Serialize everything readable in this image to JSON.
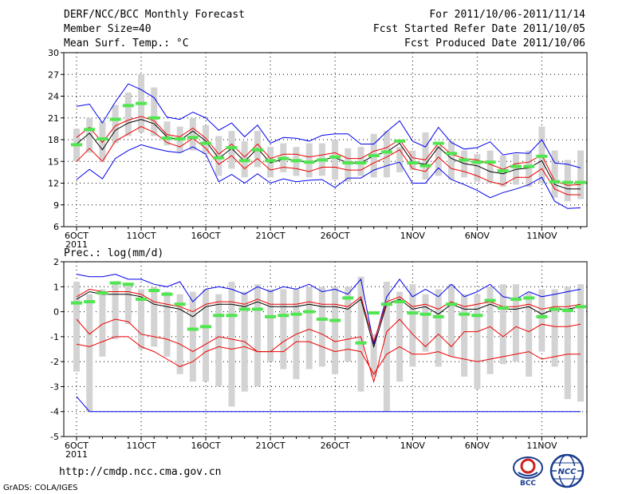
{
  "header": {
    "title": "DERF/NCC/BCC Monthly Forecast",
    "member_size": "Member Size=40",
    "variable": "Mean Surf. Temp.: °C",
    "period": "For 2011/10/06-2011/11/14",
    "refer_date": "Fcst Started Refer Date 2011/10/05",
    "produced_date": "Fcst Produced Date 2011/10/06"
  },
  "footer": {
    "url": "http://cmdp.ncc.cma.gov.cn",
    "credit": "GrADS: COLA/IGES",
    "logo_bcc": "BCC",
    "logo_ncc": "NCC"
  },
  "colors": {
    "grid": "#000000",
    "box": "#d3d3d3",
    "mean": "#50e650",
    "envelope": "#0000ee",
    "interval": "#ee0000",
    "median": "#000000"
  },
  "chart_data": [
    {
      "type": "line",
      "name": "temperature",
      "title": "",
      "ylabel": "Mean Surf. Temp.: °C",
      "ylim": [
        6,
        30
      ],
      "yticks": [
        6,
        9,
        12,
        15,
        18,
        21,
        24,
        27,
        30
      ],
      "days": 40,
      "xtick_labels": [
        {
          "day": 1,
          "label": "6OCT"
        },
        {
          "day": 6,
          "label": "11OCT"
        },
        {
          "day": 11,
          "label": "16OCT"
        },
        {
          "day": 16,
          "label": "21OCT"
        },
        {
          "day": 21,
          "label": "26OCT"
        },
        {
          "day": 27,
          "label": "1NOV"
        },
        {
          "day": 32,
          "label": "6NOV"
        },
        {
          "day": 37,
          "label": "11NOV"
        }
      ],
      "year_label": "2011",
      "box_low": [
        15.0,
        16.2,
        15.2,
        17.5,
        18.5,
        19.0,
        18.5,
        17.2,
        16.2,
        16.5,
        16.0,
        13.0,
        14.0,
        12.8,
        14.2,
        12.8,
        13.5,
        13.0,
        12.8,
        13.0,
        12.5,
        12.2,
        13.0,
        12.8,
        12.8,
        13.5,
        13.8,
        12.5,
        13.0,
        12.5,
        12.8,
        12.2,
        12.0,
        11.5,
        11.8,
        11.5,
        12.0,
        10.0,
        9.5,
        9.8
      ],
      "box_high": [
        19.5,
        21.0,
        20.5,
        22.8,
        24.5,
        27.0,
        25.2,
        20.5,
        19.8,
        21.0,
        20.0,
        18.5,
        19.2,
        17.8,
        19.2,
        17.0,
        17.5,
        17.0,
        17.5,
        17.5,
        18.0,
        16.8,
        17.0,
        18.8,
        19.2,
        17.0,
        16.5,
        19.0,
        17.2,
        17.8,
        16.5,
        16.0,
        16.5,
        15.8,
        16.0,
        16.5,
        19.8,
        16.5,
        15.2,
        16.5
      ],
      "series": [
        {
          "name": "max",
          "color": "envelope",
          "values": [
            22.6,
            22.9,
            20.3,
            23.2,
            25.7,
            24.9,
            23.8,
            21.1,
            20.8,
            21.8,
            21.0,
            19.3,
            20.3,
            18.4,
            20.0,
            17.5,
            18.3,
            18.2,
            17.8,
            18.6,
            18.8,
            18.8,
            17.4,
            17.4,
            19.1,
            20.6,
            17.8,
            17.0,
            19.7,
            17.6,
            16.7,
            16.9,
            17.7,
            15.9,
            16.2,
            16.1,
            18.0,
            14.8,
            14.6,
            14.1
          ]
        },
        {
          "name": "upper",
          "color": "interval",
          "values": [
            18.3,
            19.7,
            17.6,
            19.9,
            20.7,
            21.2,
            20.6,
            18.7,
            18.4,
            19.6,
            18.2,
            16.0,
            17.4,
            15.6,
            17.4,
            15.4,
            16.0,
            16.0,
            15.6,
            15.9,
            16.2,
            15.4,
            15.4,
            16.4,
            16.9,
            18.0,
            15.5,
            15.2,
            17.5,
            16.0,
            15.4,
            15.2,
            14.6,
            13.9,
            14.7,
            14.9,
            15.9,
            12.3,
            11.7,
            11.8
          ]
        },
        {
          "name": "median",
          "color": "median",
          "values": [
            17.4,
            18.9,
            16.6,
            19.3,
            20.3,
            20.8,
            20.2,
            18.4,
            17.9,
            19.2,
            17.8,
            15.4,
            16.8,
            15.0,
            16.8,
            14.8,
            15.3,
            15.2,
            14.8,
            15.3,
            15.5,
            14.8,
            14.8,
            15.8,
            16.3,
            17.5,
            14.9,
            14.6,
            17.0,
            15.4,
            14.7,
            14.4,
            13.6,
            13.3,
            13.9,
            14.1,
            15.1,
            11.8,
            11.2,
            11.2
          ]
        },
        {
          "name": "lower",
          "color": "interval",
          "values": [
            15.0,
            16.8,
            15.0,
            17.8,
            18.8,
            19.8,
            19.0,
            17.6,
            17.0,
            18.2,
            16.8,
            14.6,
            15.8,
            14.0,
            15.4,
            13.8,
            14.2,
            14.0,
            13.6,
            14.2,
            14.2,
            13.8,
            13.8,
            14.8,
            15.6,
            16.6,
            14.0,
            13.6,
            15.6,
            14.0,
            13.6,
            13.0,
            12.2,
            11.8,
            12.8,
            12.8,
            14.0,
            11.2,
            10.4,
            10.4
          ]
        },
        {
          "name": "min",
          "color": "envelope",
          "values": [
            12.5,
            13.9,
            12.6,
            15.4,
            16.5,
            17.3,
            16.8,
            16.4,
            16.2,
            17.0,
            16.0,
            12.2,
            13.2,
            12.0,
            13.3,
            12.0,
            12.6,
            12.2,
            12.4,
            12.5,
            11.4,
            12.7,
            12.7,
            13.8,
            14.4,
            14.9,
            12.0,
            12.0,
            14.1,
            12.5,
            11.8,
            11.0,
            10.0,
            10.7,
            11.2,
            11.8,
            12.8,
            9.5,
            8.5,
            8.6
          ]
        }
      ],
      "mean_marks": [
        17.3,
        19.4,
        18.1,
        20.8,
        22.7,
        23.0,
        21.0,
        18.2,
        18.1,
        18.3,
        17.5,
        15.5,
        16.9,
        15.1,
        16.6,
        15.1,
        15.4,
        15.1,
        14.9,
        15.2,
        15.6,
        14.8,
        14.8,
        15.8,
        16.3,
        17.8,
        14.8,
        14.4,
        17.5,
        16.1,
        15.2,
        14.9,
        14.9,
        13.7,
        14.3,
        14.3,
        15.7,
        12.2,
        12.1,
        12.1
      ]
    },
    {
      "type": "line",
      "name": "precipitation",
      "title": "",
      "ylabel": "Prec.: log(mm/d)",
      "ylim": [
        -5,
        2
      ],
      "yticks": [
        -5,
        -4,
        -3,
        -2,
        -1,
        0,
        1,
        2
      ],
      "days": 40,
      "xtick_labels": [
        {
          "day": 1,
          "label": "6OCT"
        },
        {
          "day": 6,
          "label": "11OCT"
        },
        {
          "day": 11,
          "label": "16OCT"
        },
        {
          "day": 16,
          "label": "21OCT"
        },
        {
          "day": 21,
          "label": "26OCT"
        },
        {
          "day": 27,
          "label": "1NOV"
        },
        {
          "day": 32,
          "label": "6NOV"
        },
        {
          "day": 37,
          "label": "11NOV"
        }
      ],
      "year_label": "2011",
      "box_low": [
        -2.4,
        -4.0,
        -1.8,
        -1.1,
        -0.5,
        -1.5,
        -1.4,
        -1.8,
        -2.5,
        -2.8,
        -2.8,
        -3.0,
        -3.8,
        -3.2,
        -3.0,
        -2.0,
        -2.3,
        -2.7,
        -2.3,
        -2.2,
        -2.5,
        -2.0,
        -3.2,
        -2.6,
        -4.0,
        -2.8,
        -2.2,
        -1.6,
        -2.2,
        -1.8,
        -2.6,
        -3.1,
        -2.5,
        -2.1,
        -2.0,
        -2.6,
        -1.6,
        -2.2,
        -3.5,
        -3.6
      ],
      "box_high": [
        1.2,
        0.7,
        0.9,
        1.1,
        1.1,
        0.9,
        1.0,
        0.8,
        0.7,
        0.8,
        0.9,
        0.7,
        1.2,
        0.8,
        1.1,
        0.9,
        0.9,
        0.9,
        1.0,
        1.0,
        1.0,
        1.0,
        1.4,
        -0.9,
        1.2,
        0.8,
        1.1,
        0.7,
        0.9,
        1.1,
        0.7,
        0.7,
        1.0,
        1.1,
        1.1,
        0.8,
        0.9,
        0.9,
        1.0,
        1.1
      ],
      "series": [
        {
          "name": "max",
          "color": "envelope",
          "values": [
            1.5,
            1.4,
            1.4,
            1.5,
            1.3,
            1.3,
            1.1,
            1.0,
            1.2,
            0.4,
            0.9,
            1.0,
            0.9,
            0.7,
            1.0,
            0.8,
            1.0,
            0.9,
            1.1,
            0.8,
            0.9,
            0.7,
            1.3,
            -1.3,
            0.6,
            1.3,
            0.6,
            0.9,
            0.6,
            1.1,
            0.6,
            0.8,
            1.1,
            0.6,
            0.5,
            0.8,
            0.6,
            0.7,
            0.8,
            0.9
          ]
        },
        {
          "name": "upper",
          "color": "interval",
          "values": [
            0.6,
            0.9,
            0.8,
            0.8,
            0.8,
            0.7,
            0.4,
            0.3,
            0.2,
            0.0,
            0.3,
            0.4,
            0.4,
            0.3,
            0.5,
            0.3,
            0.3,
            0.3,
            0.4,
            0.3,
            0.3,
            0.2,
            0.6,
            -1.2,
            0.4,
            0.6,
            0.2,
            0.3,
            0.1,
            0.4,
            0.2,
            0.3,
            0.4,
            0.2,
            0.2,
            0.3,
            0.1,
            0.2,
            0.2,
            0.3
          ]
        },
        {
          "name": "median",
          "color": "median",
          "values": [
            0.5,
            0.8,
            0.7,
            0.7,
            0.7,
            0.6,
            0.3,
            0.2,
            0.1,
            -0.2,
            0.2,
            0.3,
            0.3,
            0.2,
            0.4,
            0.2,
            0.2,
            0.2,
            0.3,
            0.2,
            0.2,
            0.1,
            0.5,
            -1.4,
            0.3,
            0.5,
            0.1,
            0.2,
            -0.1,
            0.3,
            0.1,
            0.1,
            0.3,
            0.1,
            0.1,
            0.2,
            -0.1,
            0.1,
            0.1,
            0.2
          ]
        },
        {
          "name": "lower",
          "color": "interval",
          "values": [
            -0.3,
            -0.9,
            -0.5,
            -0.3,
            -0.4,
            -0.9,
            -1.0,
            -1.1,
            -1.3,
            -1.6,
            -1.3,
            -1.0,
            -1.1,
            -1.2,
            -1.6,
            -1.6,
            -1.2,
            -0.9,
            -0.7,
            -0.9,
            -1.2,
            -1.1,
            -1.0,
            -2.8,
            -0.8,
            -0.3,
            -0.9,
            -1.4,
            -0.9,
            -1.4,
            -0.8,
            -0.8,
            -0.6,
            -1.0,
            -0.6,
            -0.8,
            -0.5,
            -0.6,
            -0.6,
            -0.5
          ]
        },
        {
          "name": "lower2",
          "color": "interval",
          "values": [
            -1.3,
            -1.4,
            -1.2,
            -1.0,
            -1.0,
            -1.4,
            -1.6,
            -1.9,
            -2.2,
            -2.0,
            -1.6,
            -1.4,
            -1.5,
            -1.4,
            -1.6,
            -1.6,
            -1.6,
            -1.2,
            -1.2,
            -1.4,
            -1.6,
            -1.5,
            -1.6,
            -2.5,
            -1.7,
            -1.4,
            -1.7,
            -1.7,
            -1.6,
            -1.8,
            -1.9,
            -2.0,
            -1.9,
            -1.8,
            -1.7,
            -1.6,
            -1.9,
            -1.8,
            -1.7,
            -1.7
          ]
        },
        {
          "name": "min",
          "color": "envelope",
          "values": [
            -3.4,
            -4.0,
            -4.0,
            -4.0,
            -4.0,
            -4.0,
            -4.0,
            -4.0,
            -4.0,
            -4.0,
            -4.0,
            -4.0,
            -4.0,
            -4.0,
            -4.0,
            -4.0,
            -4.0,
            -4.0,
            -4.0,
            -4.0,
            -4.0,
            -4.0,
            -4.0,
            -4.0,
            -4.0,
            -4.0,
            -4.0,
            -4.0,
            -4.0,
            -4.0,
            -4.0,
            -4.0,
            -4.0,
            -4.0,
            -4.0,
            -4.0,
            -4.0,
            -4.0,
            -4.0,
            -4.0
          ]
        }
      ],
      "mean_marks": [
        0.35,
        0.4,
        0.75,
        1.15,
        1.1,
        0.5,
        0.85,
        0.7,
        0.3,
        -0.7,
        -0.6,
        -0.15,
        -0.15,
        0.1,
        0.1,
        -0.2,
        -0.15,
        -0.1,
        0.0,
        -0.3,
        -0.35,
        0.55,
        -1.25,
        -0.05,
        0.3,
        0.4,
        -0.05,
        -0.1,
        -0.2,
        0.3,
        -0.1,
        -0.15,
        0.45,
        0.15,
        0.5,
        0.55,
        -0.2,
        0.1,
        0.05,
        0.2
      ]
    }
  ]
}
